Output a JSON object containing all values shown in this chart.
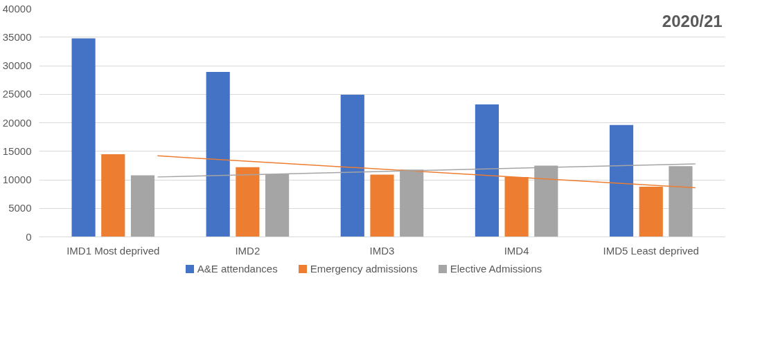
{
  "chart_data": {
    "type": "bar",
    "categories": [
      "IMD1 Most deprived",
      "IMD2",
      "IMD3",
      "IMD4",
      "IMD5 Least deprived"
    ],
    "series": [
      {
        "name": "A&E attendances",
        "color": "#4472c4",
        "values": [
          34800,
          28900,
          24900,
          23200,
          19600
        ]
      },
      {
        "name": "Emergency admissions",
        "color": "#ed7d31",
        "values": [
          14500,
          12200,
          10900,
          10500,
          8800
        ]
      },
      {
        "name": "Elective Admissions",
        "color": "#a5a5a5",
        "values": [
          10800,
          11000,
          11800,
          12500,
          12400
        ]
      },
      {
        "type": "line",
        "color": "#ed7d31",
        "x": [
          "IMD1 Most deprived",
          "IMD5 Least deprived"
        ],
        "values": [
          14200,
          8600
        ]
      },
      {
        "type": "line",
        "color": "#a5a5a5",
        "x": [
          "IMD1 Most deprived",
          "IMD5 Least deprived"
        ],
        "values": [
          10500,
          12800
        ]
      }
    ],
    "ylim": [
      0,
      40000
    ],
    "yticks": [
      0,
      5000,
      10000,
      15000,
      20000,
      25000,
      30000,
      35000,
      40000
    ],
    "grid": "y",
    "legend": "bottom",
    "annotations": [
      "2020/21"
    ]
  }
}
